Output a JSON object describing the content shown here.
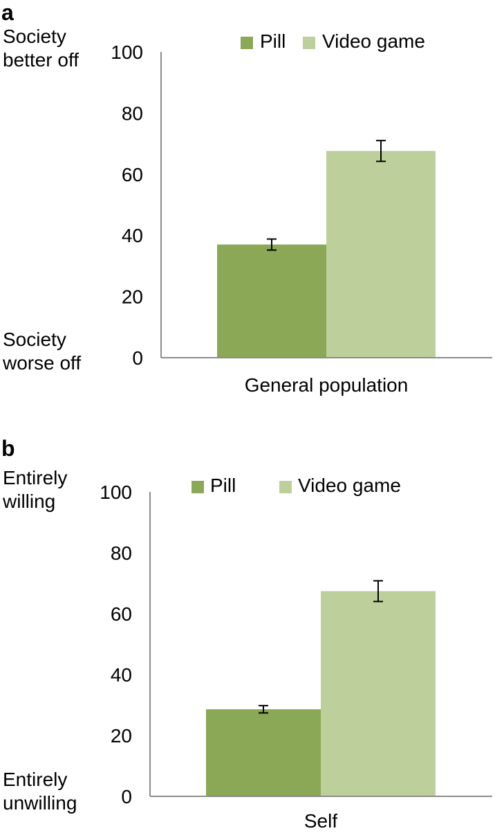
{
  "chart_data": [
    {
      "type": "bar",
      "panel_label": "a",
      "top_label": "Society better off",
      "bottom_label": "Society worse off",
      "categories": [
        "General population"
      ],
      "series": [
        {
          "name": "Pill",
          "values": [
            37
          ],
          "error": [
            1.8
          ],
          "color": "#8aa856"
        },
        {
          "name": "Video game",
          "values": [
            67.6
          ],
          "error": [
            3.4
          ],
          "color": "#bdd09c"
        }
      ],
      "yticks": [
        "0",
        "20",
        "40",
        "60",
        "80",
        "100"
      ],
      "ylim": [
        0,
        100
      ],
      "legend": "top"
    },
    {
      "type": "bar",
      "panel_label": "b",
      "top_label": "Entirely willing",
      "bottom_label": "Entirely unwilling",
      "categories": [
        "Self"
      ],
      "series": [
        {
          "name": "Pill",
          "values": [
            28.6
          ],
          "error": [
            1.2
          ],
          "color": "#8aa856"
        },
        {
          "name": "Video game",
          "values": [
            67.4
          ],
          "error": [
            3.4
          ],
          "color": "#bdd09c"
        }
      ],
      "yticks": [
        "0",
        "20",
        "40",
        "60",
        "80",
        "100"
      ],
      "ylim": [
        0,
        100
      ],
      "legend": "top"
    }
  ]
}
